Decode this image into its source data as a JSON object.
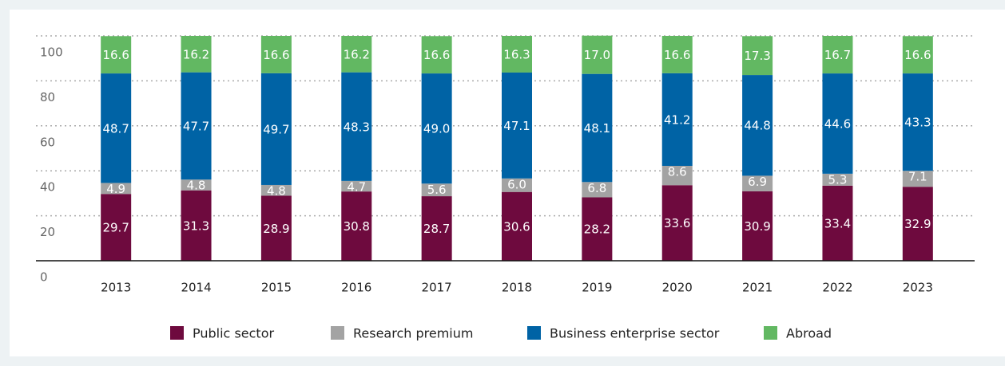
{
  "chart_data": {
    "type": "stacked_bar",
    "categories": [
      "2013",
      "2014",
      "2015",
      "2016",
      "2017",
      "2018",
      "2019",
      "2020",
      "2021",
      "2022",
      "2023"
    ],
    "series": [
      {
        "name": "Public sector",
        "color": "#6e0a3e",
        "values": [
          29.7,
          31.3,
          28.9,
          30.8,
          28.7,
          30.6,
          28.2,
          33.6,
          30.9,
          33.4,
          32.9
        ],
        "value_labels": [
          "29.7",
          "31.3",
          "28.9",
          "30.8",
          "28.7",
          "30.6",
          "28.2",
          "33.6",
          "30.9",
          "33.4",
          "32.9"
        ]
      },
      {
        "name": "Research premium",
        "color": "#a3a3a3",
        "values": [
          4.9,
          4.8,
          4.8,
          4.7,
          5.6,
          6.0,
          6.8,
          8.6,
          6.9,
          5.3,
          7.1
        ],
        "value_labels": [
          "4.9",
          "4.8",
          "4.8",
          "4.7",
          "5.6",
          "6.0",
          "6.8",
          "8.6",
          "6.9",
          "5.3",
          "7.1"
        ]
      },
      {
        "name": "Business enterprise sector",
        "color": "#0063a5",
        "values": [
          48.7,
          47.7,
          49.7,
          48.3,
          49.0,
          47.1,
          48.1,
          41.2,
          44.8,
          44.6,
          43.3
        ],
        "value_labels": [
          "48.7",
          "47.7",
          "49.7",
          "48.3",
          "49.0",
          "47.1",
          "48.1",
          "41.2",
          "44.8",
          "44.6",
          "43.3"
        ]
      },
      {
        "name": "Abroad",
        "color": "#62b862",
        "values": [
          16.6,
          16.2,
          16.6,
          16.2,
          16.6,
          16.3,
          17.0,
          16.6,
          17.3,
          16.7,
          16.6
        ],
        "value_labels": [
          "16.6",
          "16.2",
          "16.6",
          "16.2",
          "16.6",
          "16.3",
          "17.0",
          "16.6",
          "17.3",
          "16.7",
          "16.6"
        ]
      }
    ],
    "ylim": [
      0,
      100
    ],
    "yticks": [
      0,
      20,
      40,
      60,
      80,
      100
    ],
    "grid": true,
    "legend": "bottom"
  }
}
